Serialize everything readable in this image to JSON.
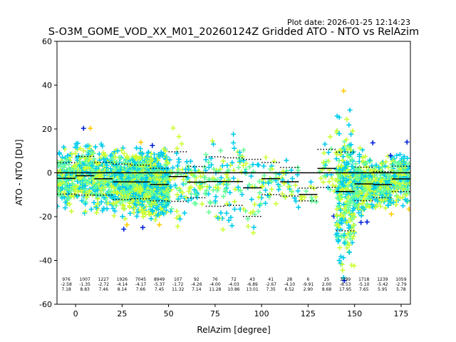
{
  "plot_date": "Plot date: 2026-01-25 12:14:23",
  "chart_data": {
    "type": "scatter",
    "title": "S-O3M_GOME_VOD_XX_M01_20260124Z Gridded ATO - NTO vs RelAzim",
    "xlabel": "RelAzim [degree]",
    "ylabel": "ATO - NTO [DU]",
    "xlim": [
      -10,
      180
    ],
    "ylim": [
      -60,
      60
    ],
    "xticks": [
      0,
      25,
      50,
      75,
      100,
      125,
      150,
      175
    ],
    "yticks": [
      -60,
      -40,
      -20,
      0,
      20,
      40,
      60
    ],
    "zero_line": 0,
    "colors": [
      "#0022dd",
      "#00ccee",
      "#66ff99",
      "#ccff33",
      "#ffcc00"
    ],
    "bins": [
      {
        "x0": -10,
        "x1": 0,
        "n": "976",
        "mean": "-2.58",
        "sd": "7.18",
        "m": -2.58,
        "s": 7.18
      },
      {
        "x0": 0,
        "x1": 10,
        "n": "1007",
        "mean": "-1.35",
        "sd": "8.83",
        "m": -1.35,
        "s": 8.83
      },
      {
        "x0": 10,
        "x1": 20,
        "n": "1227",
        "mean": "-2.72",
        "sd": "7.46",
        "m": -2.72,
        "s": 7.46
      },
      {
        "x0": 20,
        "x1": 30,
        "n": "1926",
        "mean": "-4.14",
        "sd": "8.14",
        "m": -4.14,
        "s": 8.14
      },
      {
        "x0": 30,
        "x1": 40,
        "n": "7045",
        "mean": "-4.17",
        "sd": "7.66",
        "m": -4.17,
        "s": 7.66
      },
      {
        "x0": 40,
        "x1": 50,
        "n": "8949",
        "mean": "-5.37",
        "sd": "7.45",
        "m": -5.37,
        "s": 7.45
      },
      {
        "x0": 50,
        "x1": 60,
        "n": "107",
        "mean": "-1.72",
        "sd": "11.32",
        "m": -1.72,
        "s": 11.32
      },
      {
        "x0": 60,
        "x1": 70,
        "n": "92",
        "mean": "-4.26",
        "sd": "7.14",
        "m": -4.26,
        "s": 7.14
      },
      {
        "x0": 70,
        "x1": 80,
        "n": "76",
        "mean": "-4.00",
        "sd": "11.28",
        "m": -4.0,
        "s": 11.28
      },
      {
        "x0": 80,
        "x1": 90,
        "n": "72",
        "mean": "-4.03",
        "sd": "10.86",
        "m": -4.03,
        "s": 10.86
      },
      {
        "x0": 90,
        "x1": 100,
        "n": "43",
        "mean": "-6.89",
        "sd": "13.01",
        "m": -6.89,
        "s": 13.01
      },
      {
        "x0": 100,
        "x1": 110,
        "n": "41",
        "mean": "-2.67",
        "sd": "7.35",
        "m": -2.67,
        "s": 7.35
      },
      {
        "x0": 110,
        "x1": 120,
        "n": "28",
        "mean": "-4.10",
        "sd": "6.52",
        "m": -4.1,
        "s": 6.52
      },
      {
        "x0": 120,
        "x1": 130,
        "n": "6",
        "mean": "-9.91",
        "sd": "2.90",
        "m": -9.91,
        "s": 2.9
      },
      {
        "x0": 130,
        "x1": 140,
        "n": "25",
        "mean": "2.00",
        "sd": "8.68",
        "m": 2.0,
        "s": 8.68
      },
      {
        "x0": 140,
        "x1": 150,
        "n": "3099",
        "mean": "-8.53",
        "sd": "17.95",
        "m": -8.53,
        "s": 17.95
      },
      {
        "x0": 150,
        "x1": 160,
        "n": "1718",
        "mean": "-5.10",
        "sd": "7.65",
        "m": -5.1,
        "s": 7.65
      },
      {
        "x0": 160,
        "x1": 170,
        "n": "1239",
        "mean": "-5.42",
        "sd": "5.95",
        "m": -5.42,
        "s": 5.95
      },
      {
        "x0": 170,
        "x1": 180,
        "n": "1059",
        "mean": "-2.79",
        "sd": "5.78",
        "m": -2.79,
        "s": 5.78
      }
    ]
  }
}
